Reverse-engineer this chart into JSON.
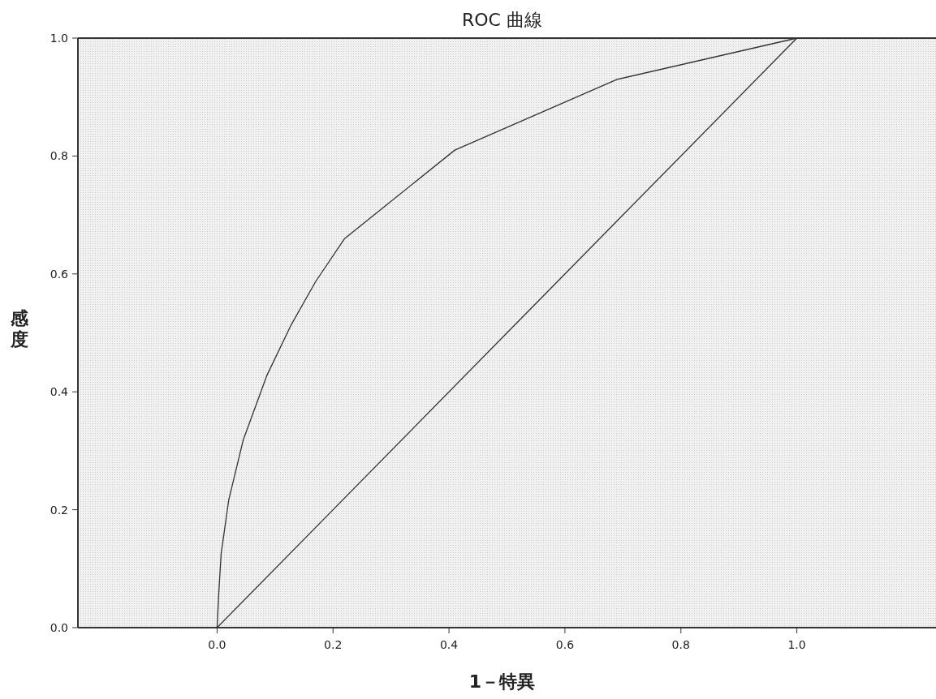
{
  "chart_data": {
    "type": "line",
    "title": "ROC 曲線",
    "xlabel": "1－特異",
    "ylabel": "感度",
    "xlim": [
      -0.24,
      1.24
    ],
    "ylim": [
      0,
      1
    ],
    "xticks": [
      {
        "value": 0,
        "label": "0.0"
      },
      0.2,
      0.4,
      0.6,
      0.8,
      {
        "value": 1,
        "label": "1.0"
      }
    ],
    "yticks": [
      {
        "value": 0,
        "label": "0.0"
      },
      0.2,
      0.4,
      0.6,
      0.8,
      {
        "value": 1,
        "label": "1.0"
      }
    ],
    "marker": "none",
    "line_style": "solid",
    "grid": false,
    "series": [
      {
        "color": "#333333",
        "x": [
          0,
          0.003,
          0.007,
          0.02,
          0.045,
          0.086,
          0.128,
          0.17,
          0.22,
          0.41,
          0.69,
          1
        ],
        "values": [
          0,
          0.06,
          0.125,
          0.216,
          0.318,
          0.428,
          0.514,
          0.587,
          0.66,
          0.81,
          0.93,
          1
        ]
      },
      {
        "color": "#333333",
        "x": [
          0,
          1
        ],
        "values": [
          0,
          1
        ]
      }
    ]
  }
}
